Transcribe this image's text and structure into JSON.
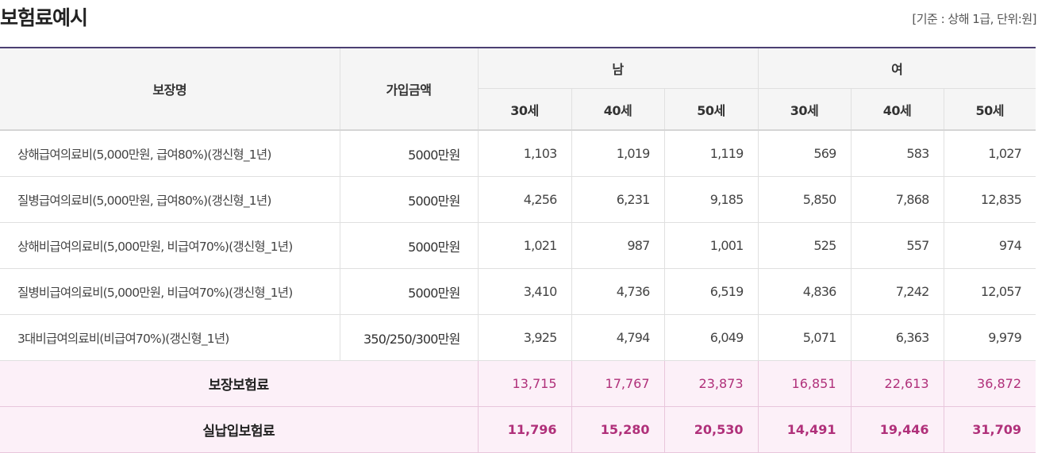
{
  "page": {
    "title": "보험료예시",
    "note": "[기준 : 상해 1급, 단위:원]"
  },
  "table": {
    "headers": {
      "coverage": "보장명",
      "amount": "가입금액",
      "male": "남",
      "female": "여",
      "ages": [
        "30세",
        "40세",
        "50세",
        "30세",
        "40세",
        "50세"
      ]
    },
    "rows": [
      {
        "name": "상해급여의료비(5,000만원, 급여80%)(갱신형_1년)",
        "amount": "5000만원",
        "values": [
          "1,103",
          "1,019",
          "1,119",
          "569",
          "583",
          "1,027"
        ]
      },
      {
        "name": "질병급여의료비(5,000만원, 급여80%)(갱신형_1년)",
        "amount": "5000만원",
        "values": [
          "4,256",
          "6,231",
          "9,185",
          "5,850",
          "7,868",
          "12,835"
        ]
      },
      {
        "name": "상해비급여의료비(5,000만원, 비급여70%)(갱신형_1년)",
        "amount": "5000만원",
        "values": [
          "1,021",
          "987",
          "1,001",
          "525",
          "557",
          "974"
        ]
      },
      {
        "name": "질병비급여의료비(5,000만원, 비급여70%)(갱신형_1년)",
        "amount": "5000만원",
        "values": [
          "3,410",
          "4,736",
          "6,519",
          "4,836",
          "7,242",
          "12,057"
        ]
      },
      {
        "name": "3대비급여의료비(비급여70%)(갱신형_1년)",
        "amount": "350/250/300만원",
        "values": [
          "3,925",
          "4,794",
          "6,049",
          "5,071",
          "6,363",
          "9,979"
        ]
      }
    ],
    "totals": [
      {
        "label": "보장보험료",
        "values": [
          "13,715",
          "17,767",
          "23,873",
          "16,851",
          "22,613",
          "36,872"
        ]
      },
      {
        "label": "실납입보험료",
        "values": [
          "11,796",
          "15,280",
          "20,530",
          "14,491",
          "19,446",
          "31,709"
        ]
      }
    ]
  },
  "colors": {
    "header_border": "#4b3f72",
    "total_bg": "#fcf0f8",
    "total_text": "#b0307a"
  }
}
